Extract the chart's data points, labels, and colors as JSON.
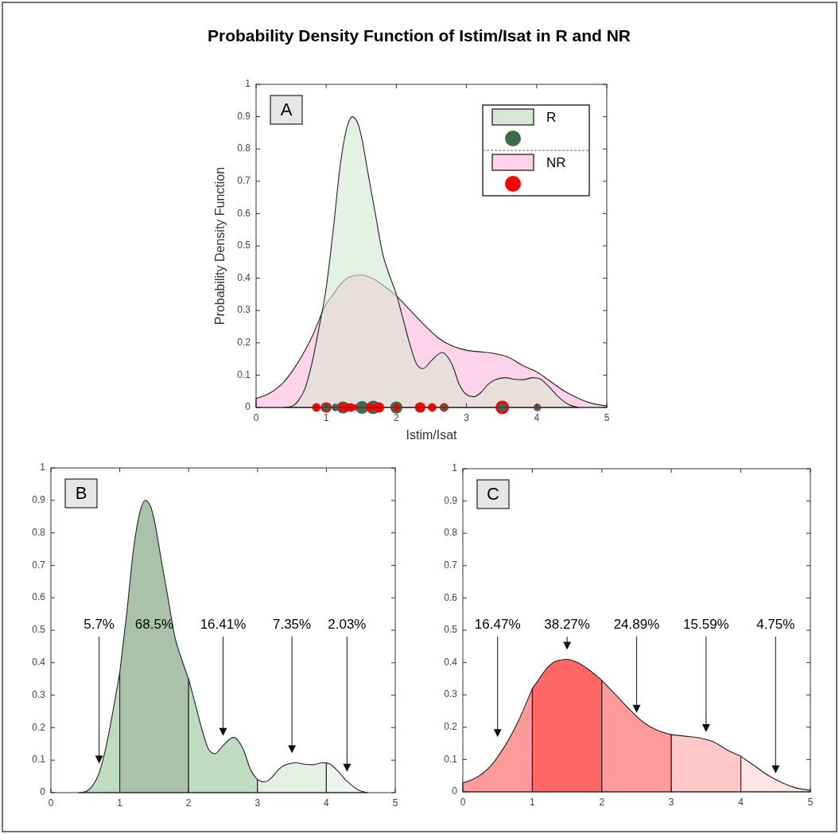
{
  "chart_data": [
    {
      "type": "area",
      "title": "Probability Density Function of Istim/Isat in R and NR",
      "xlabel": "Istim/Isat",
      "ylabel": "Probability Density Function",
      "annotations": [
        "A"
      ],
      "xlim": [
        0,
        5
      ],
      "ylim": [
        0,
        1
      ],
      "xticks": [
        0,
        1,
        2,
        3,
        4,
        5
      ],
      "yticks": [
        0,
        0.1,
        0.2,
        0.3,
        0.4,
        0.5,
        0.6,
        0.7,
        0.8,
        0.9,
        1
      ],
      "grid": false,
      "legend": "top right",
      "series": [
        {
          "name": "R",
          "color": "#d5e8d4",
          "x": [
            0.4,
            0.5,
            0.6,
            0.7,
            0.8,
            0.9,
            1.0,
            1.1,
            1.2,
            1.3,
            1.37,
            1.45,
            1.5,
            1.6,
            1.7,
            1.8,
            1.9,
            2.0,
            2.1,
            2.2,
            2.3,
            2.38,
            2.5,
            2.65,
            2.8,
            2.9,
            3.0,
            3.1,
            3.2,
            3.3,
            3.4,
            3.55,
            3.7,
            3.8,
            3.95,
            4.0,
            4.05,
            4.15,
            4.3,
            4.45,
            4.6
          ],
          "values": [
            0,
            0.003,
            0.02,
            0.06,
            0.14,
            0.25,
            0.37,
            0.55,
            0.75,
            0.87,
            0.9,
            0.88,
            0.84,
            0.72,
            0.6,
            0.48,
            0.41,
            0.35,
            0.27,
            0.19,
            0.13,
            0.12,
            0.145,
            0.17,
            0.13,
            0.07,
            0.04,
            0.033,
            0.045,
            0.07,
            0.085,
            0.092,
            0.087,
            0.086,
            0.092,
            0.091,
            0.088,
            0.07,
            0.035,
            0.01,
            0
          ]
        },
        {
          "type": "bubble",
          "color": "#3d6b50",
          "x": [
            1.0,
            1.13,
            1.24,
            1.51,
            1.67,
            2.0,
            2.68,
            3.51,
            4.01
          ],
          "values": [
            0,
            0,
            0,
            0,
            0,
            0,
            0,
            0,
            0
          ],
          "sizes": [
            0.3,
            0.3,
            0.8,
            0.9,
            1,
            0.8,
            0.2,
            0.4,
            0.2
          ]
        },
        {
          "name": "NR",
          "color": "#ffd3e9",
          "x": [
            0,
            0.2,
            0.4,
            0.6,
            0.8,
            1.0,
            1.1,
            1.2,
            1.35,
            1.5,
            1.65,
            1.8,
            2.0,
            2.2,
            2.4,
            2.6,
            2.8,
            3.0,
            3.2,
            3.4,
            3.6,
            3.8,
            4.0,
            4.2,
            4.4,
            4.6,
            4.8,
            5.0
          ],
          "values": [
            0.028,
            0.045,
            0.08,
            0.14,
            0.22,
            0.32,
            0.35,
            0.38,
            0.405,
            0.41,
            0.4,
            0.38,
            0.345,
            0.3,
            0.255,
            0.215,
            0.19,
            0.177,
            0.172,
            0.167,
            0.155,
            0.13,
            0.11,
            0.08,
            0.05,
            0.028,
            0.012,
            0.005
          ]
        },
        {
          "type": "bubble",
          "color": "#ff0000",
          "x": [
            0.86,
            1.0,
            1.22,
            1.29,
            1.35,
            1.41,
            1.62,
            1.75,
            2.0,
            2.34,
            2.51,
            2.68,
            3.51,
            4.01
          ],
          "values": [
            0,
            0,
            0,
            0,
            0,
            0,
            0,
            0,
            0,
            0,
            0,
            0,
            0,
            0
          ],
          "sizes": [
            0.4,
            0.6,
            0.4,
            0.4,
            0.4,
            0.2,
            0.4,
            0.6,
            0.3,
            0.6,
            0.4,
            0.4,
            1,
            0.3
          ]
        }
      ]
    },
    {
      "type": "area",
      "annotations": [
        "B",
        "5.7%",
        "68.5%",
        "16.41%",
        "7.35%",
        "2.03%"
      ],
      "xlim": [
        0,
        5
      ],
      "ylim": [
        0,
        1
      ],
      "xticks": [
        0,
        1,
        2,
        3,
        4,
        5
      ],
      "yticks": [
        0,
        0.1,
        0.2,
        0.3,
        0.4,
        0.5,
        0.6,
        0.7,
        0.8,
        0.9,
        1
      ],
      "grid": false,
      "series": [
        {
          "color": "#bfdcc0",
          "x": [
            0.4,
            0.5,
            0.6,
            0.7,
            0.8,
            0.9,
            1.0
          ],
          "values": [
            0,
            0.003,
            0.02,
            0.06,
            0.14,
            0.25,
            0.37
          ]
        },
        {
          "color": "#a9c2a9",
          "x": [
            1.0,
            1.1,
            1.2,
            1.3,
            1.37,
            1.45,
            1.5,
            1.6,
            1.7,
            1.8,
            1.9,
            2.0
          ],
          "values": [
            0.37,
            0.55,
            0.75,
            0.87,
            0.9,
            0.88,
            0.84,
            0.72,
            0.6,
            0.48,
            0.41,
            0.35
          ]
        },
        {
          "color": "#bfdcc0",
          "x": [
            2.0,
            2.1,
            2.2,
            2.3,
            2.38,
            2.5,
            2.65,
            2.8,
            2.9,
            3.0
          ],
          "values": [
            0.35,
            0.27,
            0.19,
            0.13,
            0.12,
            0.145,
            0.17,
            0.13,
            0.07,
            0.04
          ]
        },
        {
          "color": "#e3efe3",
          "x": [
            3.0,
            3.1,
            3.2,
            3.3,
            3.4,
            3.55,
            3.7,
            3.8,
            3.95,
            4.0
          ],
          "values": [
            0.04,
            0.033,
            0.045,
            0.07,
            0.085,
            0.092,
            0.087,
            0.086,
            0.092,
            0.091
          ]
        },
        {
          "color": "#eff6ef",
          "x": [
            4.0,
            4.05,
            4.15,
            4.3,
            4.45,
            4.6
          ],
          "values": [
            0.091,
            0.088,
            0.07,
            0.035,
            0.01,
            0
          ]
        }
      ]
    },
    {
      "type": "area",
      "annotations": [
        "C",
        "16.47%",
        "38.27%",
        "24.89%",
        "15.59%",
        "4.75%"
      ],
      "xlim": [
        0,
        5
      ],
      "ylim": [
        0,
        1
      ],
      "xticks": [
        0,
        1,
        2,
        3,
        4,
        5
      ],
      "yticks": [
        0,
        0.1,
        0.2,
        0.3,
        0.4,
        0.5,
        0.6,
        0.7,
        0.8,
        0.9,
        1
      ],
      "grid": false,
      "series": [
        {
          "color": "#ff9a9a",
          "x": [
            0,
            0.2,
            0.4,
            0.6,
            0.8,
            1.0
          ],
          "values": [
            0.028,
            0.045,
            0.08,
            0.14,
            0.22,
            0.32
          ]
        },
        {
          "color": "#ff6666",
          "x": [
            1.0,
            1.1,
            1.2,
            1.35,
            1.5,
            1.65,
            1.8,
            2.0
          ],
          "values": [
            0.32,
            0.35,
            0.38,
            0.405,
            0.41,
            0.4,
            0.38,
            0.345
          ]
        },
        {
          "color": "#ff9a9a",
          "x": [
            2.0,
            2.2,
            2.4,
            2.6,
            2.8,
            3.0
          ],
          "values": [
            0.345,
            0.3,
            0.255,
            0.215,
            0.19,
            0.177
          ]
        },
        {
          "color": "#ffc8c8",
          "x": [
            3.0,
            3.2,
            3.4,
            3.6,
            3.8,
            4.0
          ],
          "values": [
            0.177,
            0.172,
            0.167,
            0.155,
            0.13,
            0.11
          ]
        },
        {
          "color": "#ffe5e5",
          "x": [
            4.0,
            4.2,
            4.4,
            4.6,
            4.8,
            5.0
          ],
          "values": [
            0.11,
            0.08,
            0.05,
            0.028,
            0.012,
            0.005
          ]
        }
      ]
    }
  ]
}
